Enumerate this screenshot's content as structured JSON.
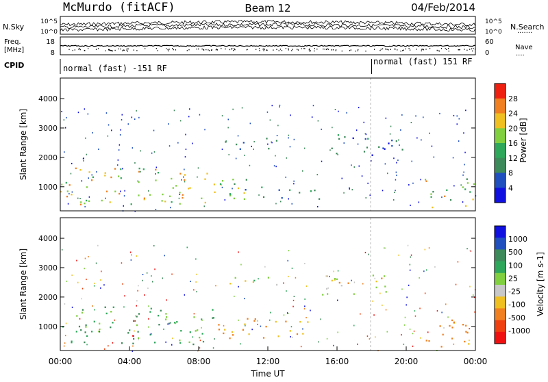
{
  "header": {
    "station": "McMurdo (fitACF)",
    "beam": "Beam 12",
    "date": "04/Feb/2014"
  },
  "sidebar_labels": {
    "nsky": "N.Sky",
    "freq": "Freq.",
    "freq_unit": "[MHz]",
    "cpid": "CPID",
    "nsearch": "N.Search",
    "nave": "Nave"
  },
  "cpid": {
    "left": "normal (fast) -151 RF",
    "right": "normal (fast) 151 RF",
    "switch_hour": 18
  },
  "colors": {
    "power": [
      "#1010e0",
      "#2050c0",
      "#3d8a5a",
      "#2ea85a",
      "#80d040",
      "#f0c020",
      "#f08020",
      "#f02010"
    ],
    "velocity": [
      "#1010e0",
      "#2050c0",
      "#3d8a5a",
      "#2ea85a",
      "#80d040",
      "#c8c8c8",
      "#f0c020",
      "#f08020",
      "#f04010",
      "#f01010"
    ]
  },
  "chart_data": [
    {
      "type": "line",
      "panel": "noise",
      "left_ticks": [
        "10^5",
        "10^0"
      ],
      "right_ticks": [
        "10^5",
        "10^0"
      ],
      "xlim": [
        0,
        24
      ]
    },
    {
      "type": "line",
      "panel": "frequency-nave",
      "left_ticks": [
        "18",
        "8"
      ],
      "right_ticks": [
        "60",
        "0"
      ],
      "xlim": [
        0,
        24
      ]
    },
    {
      "type": "heatmap",
      "panel": "power",
      "ylabel": "Slant Range [km]",
      "yticks": [
        "4000",
        "3000",
        "2000",
        "1000"
      ],
      "ylim": [
        180,
        4700
      ],
      "xlim": [
        0,
        24
      ],
      "colorbar_label": "Power [dB]",
      "colorbar_ticks": [
        "28",
        "24",
        "20",
        "16",
        "12",
        "8",
        "4"
      ],
      "colorbar_range": [
        0,
        32
      ],
      "echo_bands": [
        {
          "x": [
            0,
            9
          ],
          "range_km": [
            400,
            1700
          ],
          "level_db": 20
        },
        {
          "x": [
            9,
            15
          ],
          "range_km": [
            600,
            1300
          ],
          "level_db": 14
        },
        {
          "x": [
            9.5,
            12.5
          ],
          "range_km": [
            2300,
            2700
          ],
          "level_db": 8
        },
        {
          "x": [
            15,
            20
          ],
          "range_km": [
            2100,
            2800
          ],
          "level_db": 8
        },
        {
          "x": [
            21,
            24
          ],
          "range_km": [
            300,
            1300
          ],
          "level_db": 18
        }
      ]
    },
    {
      "type": "heatmap",
      "panel": "velocity",
      "ylabel": "Slant Range [km]",
      "yticks": [
        "4000",
        "3000",
        "2000",
        "1000"
      ],
      "ylim": [
        180,
        4700
      ],
      "xlim": [
        0,
        24
      ],
      "colorbar_label": "Velocity [m s-1]",
      "colorbar_ticks": [
        "1000",
        "500",
        "100",
        "25",
        "-25",
        "-100",
        "-500",
        "-1000"
      ],
      "xticks": [
        "00:00",
        "04:00",
        "08:00",
        "12:00",
        "16:00",
        "20:00",
        "00:00"
      ],
      "xlabel": "Time UT",
      "echo_bands": [
        {
          "x": [
            0,
            9
          ],
          "range_km": [
            400,
            1700
          ],
          "velocity": 150
        },
        {
          "x": [
            9,
            15
          ],
          "range_km": [
            600,
            1300
          ],
          "velocity": -150
        },
        {
          "x": [
            9.5,
            12.5
          ],
          "range_km": [
            2300,
            2700
          ],
          "velocity": 0
        },
        {
          "x": [
            15,
            20
          ],
          "range_km": [
            2100,
            2800
          ],
          "velocity": 0
        },
        {
          "x": [
            21,
            24
          ],
          "range_km": [
            300,
            1300
          ],
          "velocity": -200
        }
      ]
    }
  ]
}
